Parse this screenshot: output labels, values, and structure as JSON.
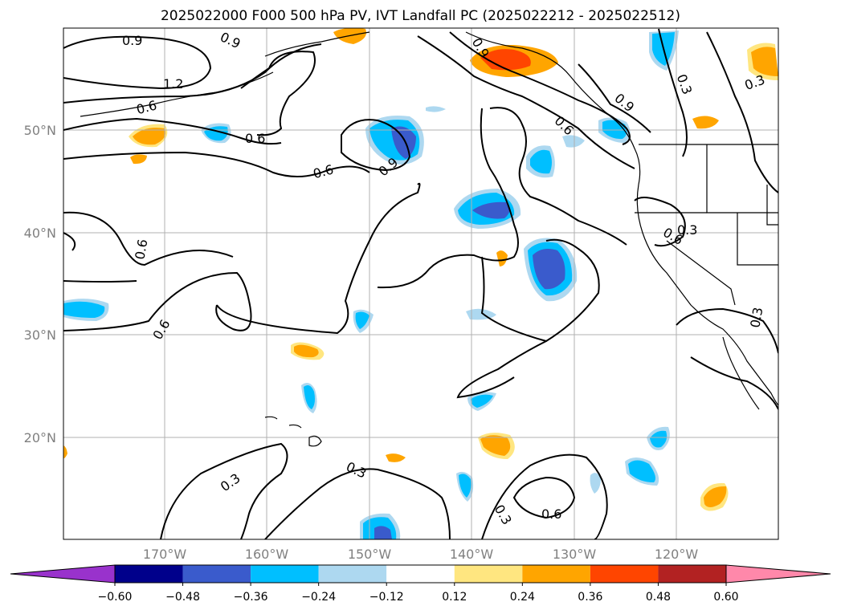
{
  "title": "2025022000 F000 500 hPa PV, IVT Landfall PC (2025022212 - 2025022512)",
  "map": {
    "lat_labels": [
      "50°N",
      "40°N",
      "30°N",
      "20°N"
    ],
    "lon_labels": [
      "170°W",
      "160°W",
      "150°W",
      "140°W",
      "130°W",
      "120°W"
    ],
    "contour_labels": [
      "0.9",
      "0.9",
      "1.2",
      "0.6",
      "0.6",
      "0.6",
      "0.6",
      "0.9",
      "0.9",
      "0.6",
      "0.9",
      "0.6",
      "0.3",
      "0.3",
      "0.6",
      "0.3",
      "0.3",
      "0.3",
      "0.3",
      "0.3",
      "0.6"
    ],
    "shading_colors": {
      "neg_strong": "#3a5bcc",
      "neg_mid": "#00bfff",
      "neg_weak": "#add8f0",
      "pos_weak": "#ffe680",
      "pos_mid": "#ffa500",
      "pos_strong": "#ff4500",
      "pos_max": "#b22222"
    }
  },
  "colorbar": {
    "tick_labels": [
      "−0.60",
      "−0.48",
      "−0.36",
      "−0.24",
      "−0.12",
      "0.12",
      "0.24",
      "0.36",
      "0.48",
      "0.60"
    ],
    "colors": [
      "#9932cc",
      "#00008b",
      "#3a5bcc",
      "#00bfff",
      "#add8f0",
      "#ffffff",
      "#ffe680",
      "#ffa500",
      "#ff4500",
      "#b22222",
      "#ff88aa"
    ]
  }
}
